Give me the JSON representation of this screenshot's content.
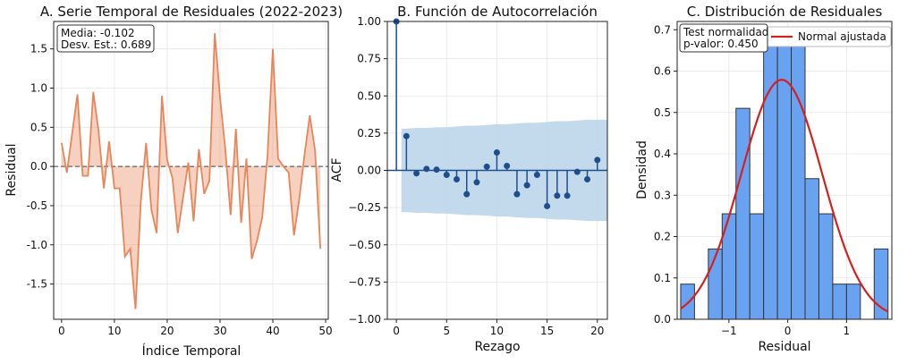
{
  "chart_data": [
    {
      "type": "area",
      "title": "A. Serie Temporal de Residuales (2022-2023)",
      "xlabel": "Índice Temporal",
      "ylabel": "Residual",
      "xlim": [
        -1.5,
        50.5
      ],
      "ylim": [
        -1.95,
        1.85
      ],
      "xticks": [
        "0",
        "10",
        "20",
        "30",
        "40",
        "50"
      ],
      "yticks": [
        "-1.5",
        "-1.0",
        "-0.5",
        "0.0",
        "0.5",
        "1.0",
        "1.5"
      ],
      "baseline": 0,
      "color": "#e8855a",
      "grid": true,
      "series": [
        {
          "values": [
            0.3,
            -0.08,
            0.42,
            0.92,
            -0.12,
            -0.12,
            0.95,
            0.45,
            -0.28,
            0.32,
            -0.28,
            -0.28,
            -1.15,
            -1.05,
            -1.82,
            -0.45,
            0.3,
            -0.55,
            -0.85,
            0.9,
            0.08,
            -0.15,
            -0.85,
            -0.4,
            0.05,
            -0.7,
            0.22,
            -0.35,
            -0.18,
            1.7,
            0.88,
            0.22,
            -0.62,
            0.48,
            -0.72,
            0.1,
            -1.18,
            -0.95,
            -0.65,
            0.15,
            1.5,
            0.1,
            0.0,
            -0.08,
            -0.88,
            -0.42,
            0.15,
            0.65,
            0.2,
            -1.05
          ]
        }
      ],
      "annotation": [
        "Media: -0.102",
        "Desv. Est.: 0.689"
      ]
    },
    {
      "type": "line",
      "title": "B. Función de Autocorrelación",
      "xlabel": "Rezago",
      "ylabel": "ACF",
      "xlim": [
        -0.9,
        21.0
      ],
      "ylim": [
        -1.0,
        1.0
      ],
      "xticks": [
        "0",
        "5",
        "10",
        "15",
        "20"
      ],
      "yticks": [
        "−1.00",
        "−0.75",
        "−0.50",
        "−0.25",
        "0.00",
        "0.25",
        "0.50",
        "0.75",
        "1.00"
      ],
      "lags": [
        0,
        1,
        2,
        3,
        4,
        5,
        6,
        7,
        8,
        9,
        10,
        11,
        12,
        13,
        14,
        15,
        16,
        17,
        18,
        19,
        20
      ],
      "values": [
        1.0,
        0.23,
        -0.02,
        0.01,
        0.005,
        -0.03,
        -0.06,
        -0.16,
        -0.08,
        0.025,
        0.12,
        0.03,
        -0.16,
        -0.1,
        -0.03,
        -0.24,
        -0.17,
        -0.17,
        -0.01,
        -0.06,
        0.07
      ],
      "confidence_upper": [
        0.28,
        0.28,
        0.285,
        0.285,
        0.29,
        0.29,
        0.295,
        0.3,
        0.3,
        0.305,
        0.31,
        0.31,
        0.315,
        0.32,
        0.32,
        0.325,
        0.33,
        0.33,
        0.335,
        0.34,
        0.34
      ],
      "color": "#1f4e8c",
      "band_color": "#b9d4ea",
      "grid": true
    },
    {
      "type": "bar",
      "title": "C. Distribución de Residuales",
      "xlabel": "Residual",
      "ylabel": "Densidad",
      "xlim": [
        -1.88,
        1.77
      ],
      "ylim": [
        0,
        0.72
      ],
      "xticks": [
        "−1",
        "0",
        "1"
      ],
      "yticks": [
        "0.0",
        "0.1",
        "0.2",
        "0.3",
        "0.4",
        "0.5",
        "0.6",
        "0.7"
      ],
      "bin_edges": [
        -1.82,
        -1.585,
        -1.35,
        -1.115,
        -0.88,
        -0.645,
        -0.41,
        -0.175,
        0.06,
        0.295,
        0.53,
        0.765,
        1.0,
        1.235,
        1.47,
        1.705
      ],
      "values": [
        0.085,
        0.0,
        0.17,
        0.255,
        0.51,
        0.255,
        0.68,
        0.68,
        0.68,
        0.34,
        0.255,
        0.085,
        0.085,
        0.0,
        0.17
      ],
      "bar_color": "#6aa2f2",
      "fit": {
        "name": "Normal ajustada",
        "mean": -0.102,
        "std": 0.689,
        "color": "#d62020"
      },
      "legend": "top-right",
      "annotation": [
        "Test normalidad",
        "p-valor: 0.450"
      ],
      "grid": true
    }
  ]
}
